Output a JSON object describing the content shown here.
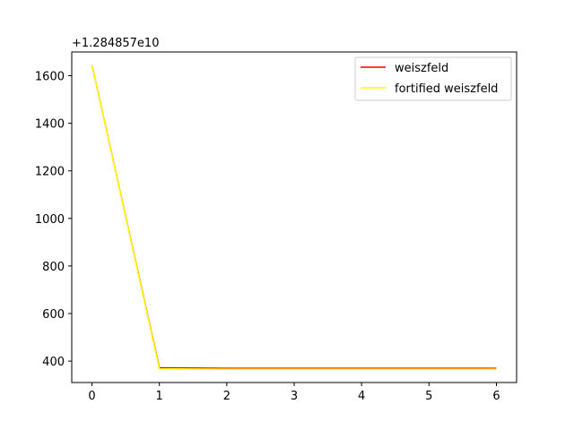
{
  "chart_data": {
    "type": "line",
    "axis_offset_text": "+1.284857e10",
    "x": [
      0,
      1,
      2,
      3,
      4,
      5,
      6
    ],
    "xlim": [
      -0.3,
      6.3
    ],
    "ylim": [
      310,
      1700
    ],
    "x_ticks": [
      0,
      1,
      2,
      3,
      4,
      5,
      6
    ],
    "y_ticks": [
      400,
      600,
      800,
      1000,
      1200,
      1400,
      1600
    ],
    "grid": false,
    "legend_position": "top-right",
    "series": [
      {
        "name": "weiszfeld",
        "color": "#ff0000",
        "values": [
          1645,
          372,
          370,
          370,
          370,
          370,
          370
        ]
      },
      {
        "name": "fortified weiszfeld",
        "color": "#ffff00",
        "values": [
          1645,
          368,
          366,
          366,
          366,
          366,
          366
        ]
      }
    ]
  }
}
